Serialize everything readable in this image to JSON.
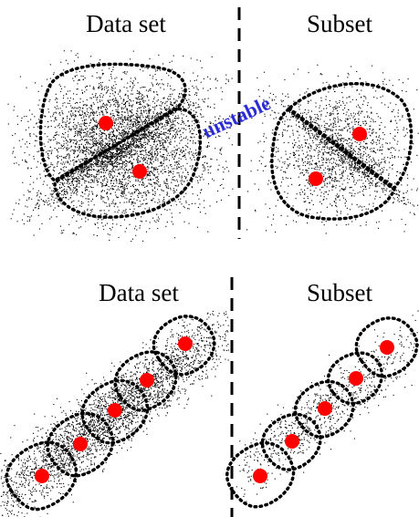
{
  "colors": {
    "background": "#ffffff",
    "points": "#000000",
    "centroid": "#ff0000",
    "note": "#2b2bd6",
    "outline": "#000000"
  },
  "top_row": {
    "left_title": "Data set",
    "right_title": "Subset",
    "note": "unstable"
  },
  "bottom_row": {
    "left_title": "Data set",
    "right_title": "Subset"
  },
  "icons": {
    "centroid": "red-dot-icon"
  }
}
